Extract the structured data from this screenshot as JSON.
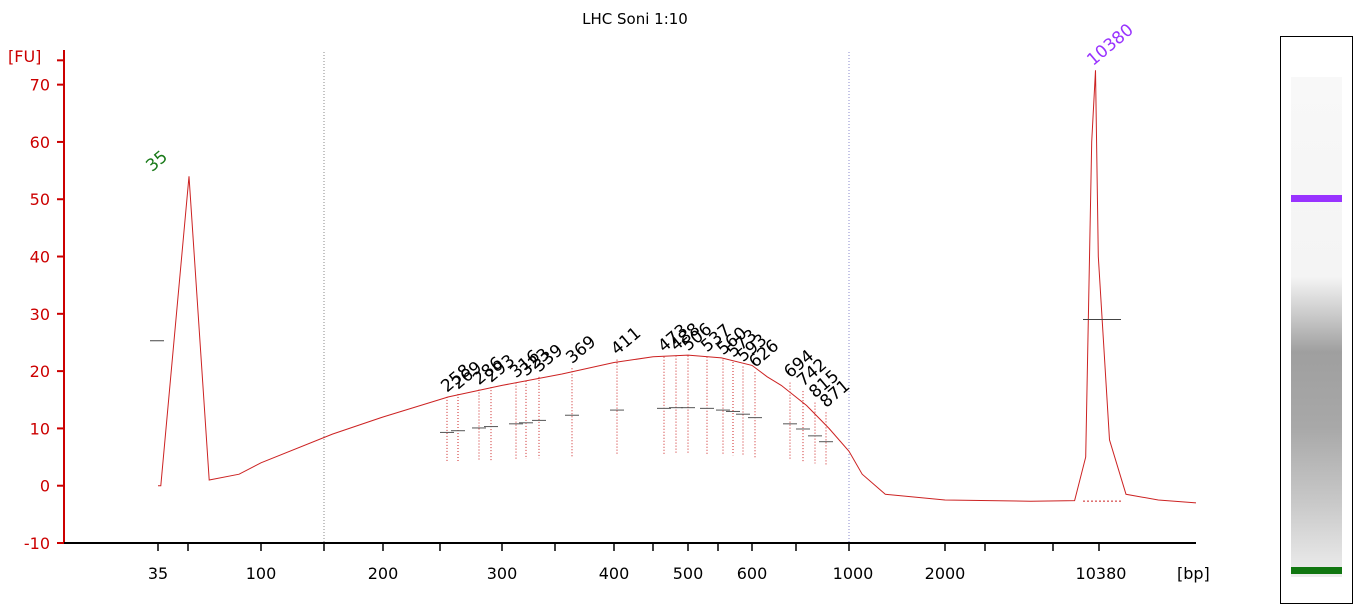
{
  "chart_data": {
    "type": "line",
    "title": "LHC Soni 1:10",
    "ylabel": "[FU]",
    "xlabel": "[bp]",
    "ylim": [
      -10,
      75
    ],
    "y_ticks": [
      -10,
      0,
      10,
      20,
      30,
      40,
      50,
      60,
      70
    ],
    "x_tick_labels": [
      "35",
      "100",
      "200",
      "300",
      "400",
      "500",
      "600",
      "1000",
      "2000",
      "10380"
    ],
    "colors": {
      "axis": "#cc0000",
      "trace": "#cc2222",
      "lower_marker": "#1a7a1a",
      "upper_marker": "#9933ff",
      "peak_text": "#000000",
      "dotted_line": "#888888"
    },
    "marker_peaks": [
      {
        "label": "35",
        "y": 54,
        "color": "lower_marker"
      },
      {
        "label": "10380",
        "y": 72.5,
        "color": "upper_marker"
      }
    ],
    "smear_peak_labels": [
      {
        "label": "258",
        "y": 15.5
      },
      {
        "label": "269",
        "y": 16.0
      },
      {
        "label": "286",
        "y": 16.8
      },
      {
        "label": "293",
        "y": 17.2
      },
      {
        "label": "316",
        "y": 18.0
      },
      {
        "label": "323",
        "y": 18.3
      },
      {
        "label": "339",
        "y": 19.0
      },
      {
        "label": "369",
        "y": 20.5
      },
      {
        "label": "411",
        "y": 22.0
      },
      {
        "label": "473",
        "y": 22.5
      },
      {
        "label": "488",
        "y": 22.7
      },
      {
        "label": "506",
        "y": 22.7
      },
      {
        "label": "537",
        "y": 22.5
      },
      {
        "label": "560",
        "y": 22.0
      },
      {
        "label": "573",
        "y": 21.6
      },
      {
        "label": "593",
        "y": 20.8
      },
      {
        "label": "626",
        "y": 19.8
      },
      {
        "label": "694",
        "y": 18.0
      },
      {
        "label": "742",
        "y": 16.5
      },
      {
        "label": "815",
        "y": 14.5
      },
      {
        "label": "871",
        "y": 12.8
      }
    ],
    "series": [
      {
        "points": [
          [
            35,
            0
          ],
          [
            36,
            0
          ],
          [
            48,
            54
          ],
          [
            59,
            1
          ],
          [
            80,
            2
          ],
          [
            100,
            4
          ],
          [
            150,
            9
          ],
          [
            200,
            12
          ],
          [
            250,
            15.5
          ],
          [
            300,
            17.5
          ],
          [
            350,
            19.5
          ],
          [
            400,
            21.5
          ],
          [
            450,
            22.5
          ],
          [
            500,
            22.8
          ],
          [
            550,
            22.3
          ],
          [
            600,
            21
          ],
          [
            650,
            19
          ],
          [
            700,
            17.5
          ],
          [
            800,
            14
          ],
          [
            900,
            10
          ],
          [
            1000,
            6
          ],
          [
            1100,
            2
          ],
          [
            1300,
            -1.5
          ],
          [
            2000,
            -2.5
          ],
          [
            5000,
            -2.7
          ],
          [
            8000,
            -2.6
          ],
          [
            9000,
            5
          ],
          [
            9600,
            60
          ],
          [
            10000,
            72.5
          ],
          [
            10300,
            40
          ],
          [
            10800,
            8
          ],
          [
            11500,
            -1.5
          ],
          [
            13000,
            -2.5
          ],
          [
            15000,
            -3
          ]
        ]
      }
    ]
  },
  "gel": {
    "bands": [
      {
        "name": "upper-marker-band",
        "color": "#9933ff"
      },
      {
        "name": "lower-marker-band",
        "color": "#117711"
      }
    ]
  }
}
